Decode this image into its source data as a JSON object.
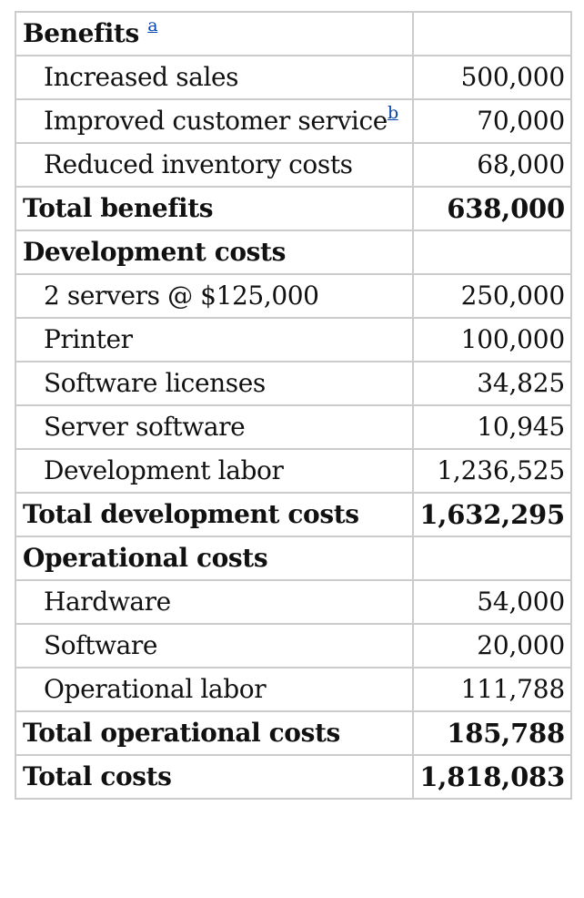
{
  "table": {
    "sections": [
      {
        "heading": "Benefits",
        "heading_footnote": "a",
        "rows": [
          {
            "label": "Increased sales",
            "value": "500,000"
          },
          {
            "label": "Improved customer service",
            "footnote": "b",
            "value": "70,000"
          },
          {
            "label": "Reduced inventory costs",
            "value": "68,000"
          }
        ],
        "total": {
          "label": "Total benefits",
          "value": "638,000"
        }
      },
      {
        "heading": "Development costs",
        "rows": [
          {
            "label": "2 servers @ $125,000",
            "value": "250,000"
          },
          {
            "label": "Printer",
            "value": "100,000"
          },
          {
            "label": "Software licenses",
            "value": "34,825"
          },
          {
            "label": "Server software",
            "value": "10,945"
          },
          {
            "label": "Development labor",
            "value": "1,236,525"
          }
        ],
        "total": {
          "label": "Total development costs",
          "value": "1,632,295"
        }
      },
      {
        "heading": "Operational costs",
        "rows": [
          {
            "label": "Hardware",
            "value": "54,000"
          },
          {
            "label": "Software",
            "value": "20,000"
          },
          {
            "label": "Operational labor",
            "value": "111,788"
          }
        ],
        "total": {
          "label": "Total operational costs",
          "value": "185,788"
        }
      }
    ],
    "grand_total": {
      "label": "Total costs",
      "value": "1,818,083"
    }
  },
  "colors": {
    "border": "#cccccc",
    "link": "#0645ad",
    "text": "#111111"
  }
}
